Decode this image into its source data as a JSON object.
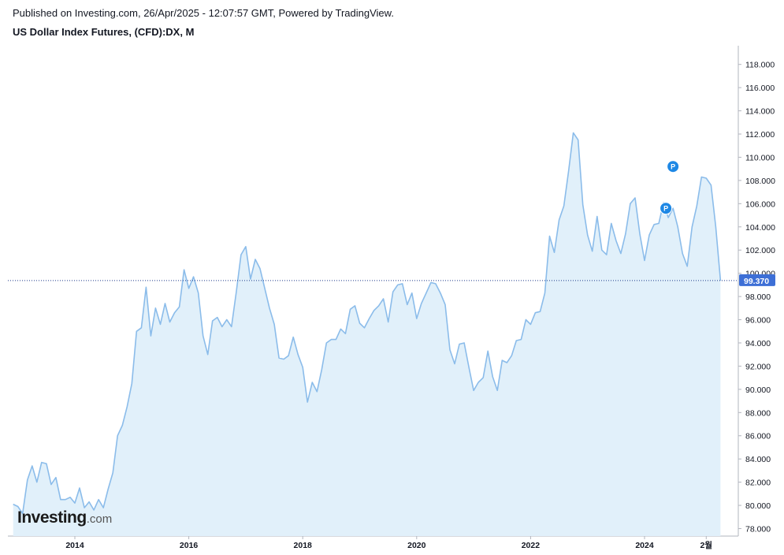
{
  "header": {
    "published": "Published on Investing.com, 26/Apr/2025 - 12:07:57 GMT, Powered by TradingView.",
    "title": "US Dollar Index Futures, (CFD):DX, M"
  },
  "logo": {
    "main": "Investing",
    "suffix": ".com"
  },
  "colors": {
    "line": "#8bbcea",
    "fill": "#e1f0fa",
    "last_price_bg": "#3d6fd6",
    "marker": "#1e88e5",
    "dotted_line": "#1e3a8a"
  },
  "chart_data": {
    "type": "area",
    "title": "US Dollar Index Futures, (CFD):DX, M",
    "ylim": [
      76.5,
      118.8
    ],
    "y_ticks": [
      "78.000",
      "80.000",
      "82.000",
      "84.000",
      "86.000",
      "88.000",
      "90.000",
      "92.000",
      "94.000",
      "96.000",
      "98.000",
      "100.000",
      "102.000",
      "104.000",
      "106.000",
      "108.000",
      "110.000",
      "112.000",
      "114.000",
      "116.000",
      "118.000"
    ],
    "x_ticks": [
      {
        "label": "2014",
        "x": 2014.0
      },
      {
        "label": "2016",
        "x": 2016.0
      },
      {
        "label": "2018",
        "x": 2018.0
      },
      {
        "label": "2020",
        "x": 2020.0
      },
      {
        "label": "2022",
        "x": 2022.0
      },
      {
        "label": "2024",
        "x": 2024.0
      },
      {
        "label": "2월",
        "x": 2025.083
      }
    ],
    "last_price": "99.370",
    "last_value": 99.37,
    "start": "2012-12",
    "values": [
      80.1,
      79.9,
      79.3,
      82.2,
      83.4,
      82.0,
      83.7,
      83.6,
      81.8,
      82.4,
      80.5,
      80.5,
      80.7,
      80.2,
      81.5,
      79.8,
      80.3,
      79.6,
      80.5,
      79.8,
      81.4,
      82.8,
      86.0,
      86.9,
      88.5,
      90.5,
      95.0,
      95.3,
      98.8,
      94.6,
      97.0,
      95.6,
      97.4,
      95.8,
      96.6,
      97.1,
      100.3,
      98.7,
      99.7,
      98.3,
      94.6,
      93.0,
      95.9,
      96.2,
      95.4,
      96.0,
      95.4,
      98.4,
      101.6,
      102.3,
      99.5,
      101.2,
      100.4,
      98.7,
      97.0,
      95.6,
      92.7,
      92.6,
      92.9,
      94.5,
      93.0,
      91.9,
      88.9,
      90.6,
      89.8,
      91.7,
      94.0,
      94.3,
      94.3,
      95.2,
      94.8,
      96.9,
      97.2,
      95.7,
      95.3,
      96.1,
      96.8,
      97.2,
      97.8,
      95.8,
      98.4,
      99.0,
      99.1,
      97.3,
      98.3,
      96.1,
      97.4,
      98.3,
      99.2,
      99.1,
      98.3,
      97.3,
      93.4,
      92.2,
      93.9,
      94.0,
      91.9,
      89.9,
      90.6,
      91.0,
      93.3,
      91.1,
      89.9,
      92.5,
      92.3,
      92.9,
      94.2,
      94.3,
      96.0,
      95.6,
      96.6,
      96.7,
      98.3,
      103.2,
      101.8,
      104.6,
      105.8,
      108.8,
      112.1,
      111.5,
      105.9,
      103.3,
      101.9,
      104.9,
      102.0,
      101.6,
      104.3,
      102.8,
      101.7,
      103.4,
      106.0,
      106.5,
      103.4,
      101.1,
      103.3,
      104.2,
      104.3,
      106.1,
      104.8,
      105.6,
      104.0,
      101.7,
      100.6,
      104.0,
      105.8,
      108.3,
      108.2,
      107.6,
      104.0,
      99.37
    ],
    "markers": [
      {
        "label": "P",
        "x": 2024.375,
        "value": 105.6
      },
      {
        "label": "P",
        "x": 2024.5,
        "value": 109.2
      }
    ]
  }
}
